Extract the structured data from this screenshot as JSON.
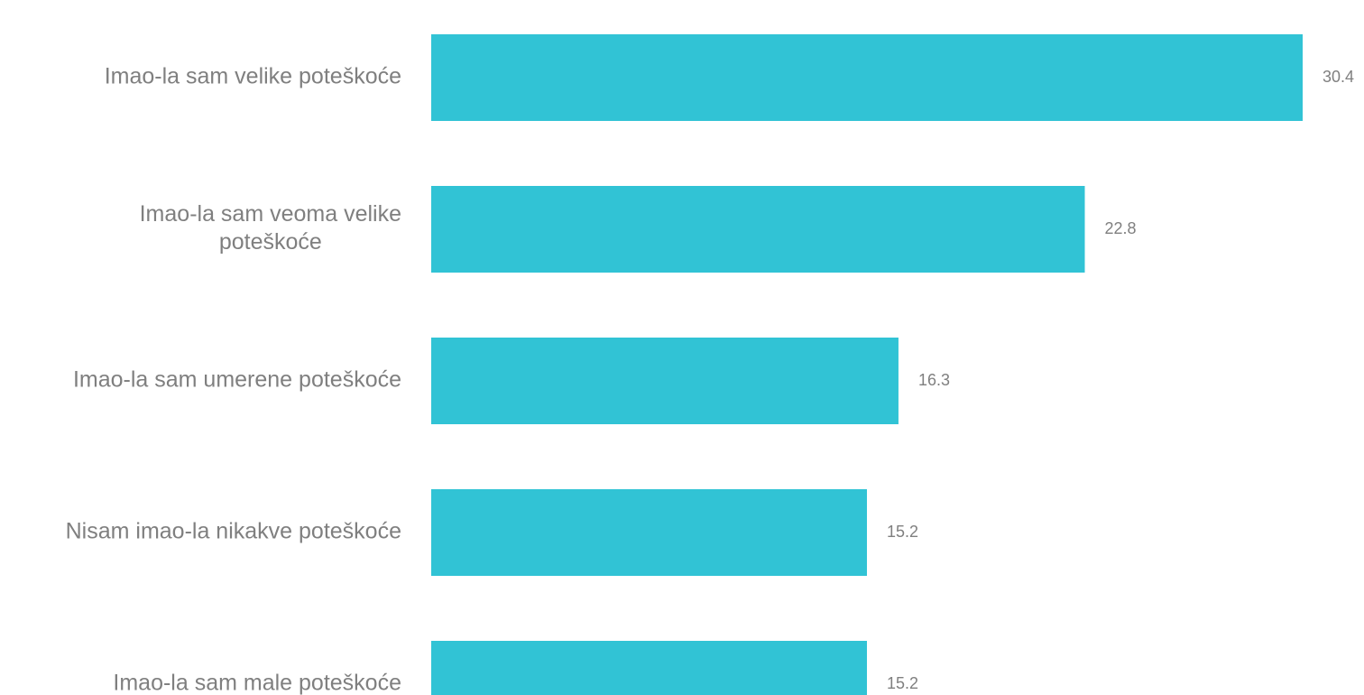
{
  "chart_data": {
    "type": "bar",
    "orientation": "horizontal",
    "categories": [
      [
        "Imao-la sam velike poteškoće"
      ],
      [
        "Imao-la sam veoma velike",
        "poteškoće"
      ],
      [
        "Imao-la sam umerene poteškoće"
      ],
      [
        "Nisam imao-la nikakve poteškoće"
      ],
      [
        "Imao-la sam male poteškoće"
      ]
    ],
    "values": [
      30.4,
      22.8,
      16.3,
      15.2,
      15.2
    ],
    "value_labels": [
      "30.4",
      "22.8",
      "16.3",
      "15.2",
      "15.2"
    ],
    "xlim": [
      0,
      30.4
    ],
    "grid": false,
    "legend": "none",
    "colors": {
      "bar": "#31c3d5",
      "text": "#7f7f7f"
    }
  }
}
